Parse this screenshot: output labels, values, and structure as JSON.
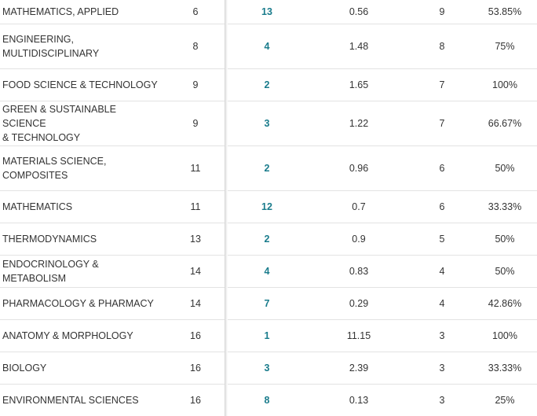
{
  "table": {
    "rows": [
      {
        "name": "MATHEMATICS, APPLIED",
        "rank": "6",
        "docs": "13",
        "cnci": "0.56",
        "top": "9",
        "pct": "53.85%"
      },
      {
        "name": "ENGINEERING,\nMULTIDISCIPLINARY",
        "rank": "8",
        "docs": "4",
        "cnci": "1.48",
        "top": "8",
        "pct": "75%"
      },
      {
        "name": "FOOD SCIENCE & TECHNOLOGY",
        "rank": "9",
        "docs": "2",
        "cnci": "1.65",
        "top": "7",
        "pct": "100%"
      },
      {
        "name": "GREEN & SUSTAINABLE SCIENCE\n& TECHNOLOGY",
        "rank": "9",
        "docs": "3",
        "cnci": "1.22",
        "top": "7",
        "pct": "66.67%"
      },
      {
        "name": "MATERIALS SCIENCE,\nCOMPOSITES",
        "rank": "11",
        "docs": "2",
        "cnci": "0.96",
        "top": "6",
        "pct": "50%"
      },
      {
        "name": "MATHEMATICS",
        "rank": "11",
        "docs": "12",
        "cnci": "0.7",
        "top": "6",
        "pct": "33.33%"
      },
      {
        "name": "THERMODYNAMICS",
        "rank": "13",
        "docs": "2",
        "cnci": "0.9",
        "top": "5",
        "pct": "50%"
      },
      {
        "name": "ENDOCRINOLOGY & METABOLISM",
        "rank": "14",
        "docs": "4",
        "cnci": "0.83",
        "top": "4",
        "pct": "50%"
      },
      {
        "name": "PHARMACOLOGY & PHARMACY",
        "rank": "14",
        "docs": "7",
        "cnci": "0.29",
        "top": "4",
        "pct": "42.86%"
      },
      {
        "name": "ANATOMY & MORPHOLOGY",
        "rank": "16",
        "docs": "1",
        "cnci": "11.15",
        "top": "3",
        "pct": "100%"
      },
      {
        "name": "BIOLOGY",
        "rank": "16",
        "docs": "3",
        "cnci": "2.39",
        "top": "3",
        "pct": "33.33%"
      },
      {
        "name": "ENVIRONMENTAL SCIENCES",
        "rank": "16",
        "docs": "8",
        "cnci": "0.13",
        "top": "3",
        "pct": "25%"
      }
    ]
  }
}
